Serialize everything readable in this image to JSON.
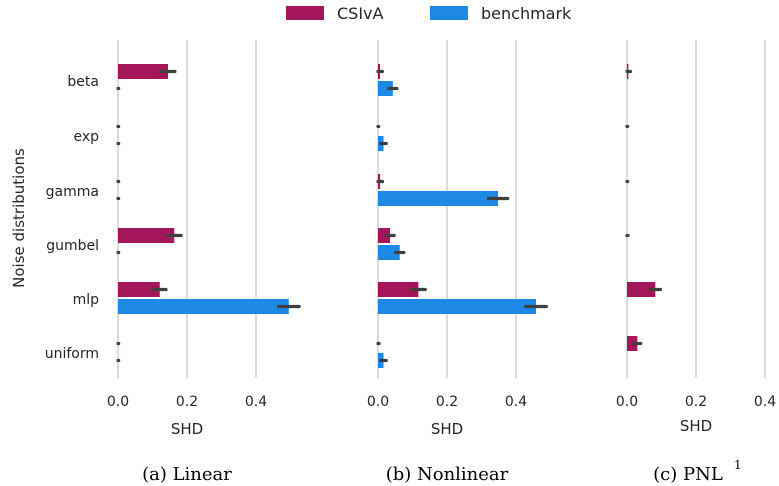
{
  "legend": {
    "entries": [
      {
        "label": "CSIvA",
        "color": "#a3175a"
      },
      {
        "label": "benchmark",
        "color": "#1e88e5"
      }
    ]
  },
  "y_axis_label": "Noise distributions",
  "errorbar_color": "#404040",
  "chart_data": [
    {
      "type": "bar",
      "orientation": "horizontal",
      "caption": "(a) Linear",
      "xlabel": "SHD",
      "xlim": [
        0.0,
        0.55
      ],
      "xticks": [
        0.0,
        0.2,
        0.4
      ],
      "xtick_labels": [
        "0.0",
        "0.2",
        "0.4"
      ],
      "grid": "vertical",
      "categories": [
        "beta",
        "exp",
        "gamma",
        "gumbel",
        "mlp",
        "uniform"
      ],
      "series": [
        {
          "name": "CSIvA",
          "values": [
            0.145,
            0.0,
            0.0,
            0.163,
            0.121,
            0.0
          ],
          "err": [
            0.02,
            0.002,
            0.002,
            0.02,
            0.018,
            0.002
          ]
        },
        {
          "name": "benchmark",
          "values": [
            0.0,
            0.0,
            0.0,
            0.0,
            0.495,
            0.0
          ],
          "err": [
            0.002,
            0.002,
            0.002,
            0.002,
            0.03,
            0.002
          ]
        }
      ]
    },
    {
      "type": "bar",
      "orientation": "horizontal",
      "caption": "(b) Nonlinear",
      "xlabel": "SHD",
      "xlim": [
        0.0,
        0.55
      ],
      "xticks": [
        0.0,
        0.2,
        0.4
      ],
      "xtick_labels": [
        "0.0",
        "0.2",
        "0.4"
      ],
      "grid": "vertical",
      "categories": [
        "beta",
        "exp",
        "gamma",
        "gumbel",
        "mlp",
        "uniform"
      ],
      "series": [
        {
          "name": "CSIvA",
          "values": [
            0.006,
            0.0,
            0.006,
            0.035,
            0.117,
            0.0
          ],
          "err": [
            0.007,
            0.002,
            0.007,
            0.012,
            0.02,
            0.003
          ]
        },
        {
          "name": "benchmark",
          "values": [
            0.043,
            0.016,
            0.348,
            0.063,
            0.458,
            0.016
          ],
          "err": [
            0.012,
            0.008,
            0.028,
            0.012,
            0.03,
            0.008
          ]
        }
      ]
    },
    {
      "type": "bar",
      "orientation": "horizontal",
      "caption": "(c) PNL",
      "caption_superscript": "1",
      "xlabel": "SHD",
      "xlim": [
        0.0,
        0.41
      ],
      "xticks": [
        0.0,
        0.2,
        0.4
      ],
      "xtick_labels": [
        "0.0",
        "0.2",
        "0.4"
      ],
      "grid": "vertical",
      "categories": [
        "beta",
        "exp",
        "gamma",
        "gumbel",
        "mlp",
        "uniform"
      ],
      "series": [
        {
          "name": "CSIvA",
          "values": [
            0.004,
            0.0,
            0.0,
            0.0,
            0.082,
            0.03
          ],
          "err": [
            0.006,
            0.002,
            0.002,
            0.003,
            0.015,
            0.01
          ]
        },
        {
          "name": "benchmark",
          "values": [
            0.0,
            0.0,
            0.0,
            0.0,
            0.0,
            0.0
          ],
          "err": [
            0,
            0,
            0,
            0,
            0,
            0
          ]
        }
      ]
    }
  ]
}
